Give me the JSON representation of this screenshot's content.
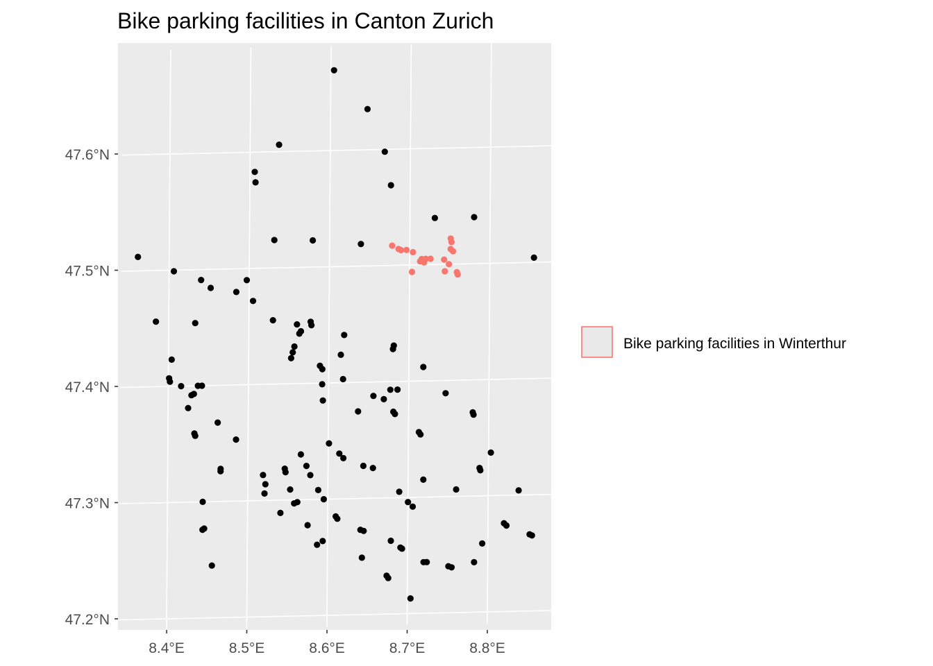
{
  "chart_data": {
    "type": "scatter",
    "title": "Bike parking facilities in Canton Zurich",
    "xlabel": "",
    "ylabel": "",
    "xlim": [
      8.34,
      8.88
    ],
    "ylim": [
      47.19,
      47.69
    ],
    "x_ticks": [
      {
        "value": 8.4,
        "label": "8.4°E"
      },
      {
        "value": 8.5,
        "label": "8.5°E"
      },
      {
        "value": 8.6,
        "label": "8.6°E"
      },
      {
        "value": 8.7,
        "label": "8.7°E"
      },
      {
        "value": 8.8,
        "label": "8.8°E"
      }
    ],
    "y_ticks": [
      {
        "value": 47.2,
        "label": "47.2°N"
      },
      {
        "value": 47.3,
        "label": "47.3°N"
      },
      {
        "value": 47.4,
        "label": "47.4°N"
      },
      {
        "value": 47.5,
        "label": "47.5°N"
      },
      {
        "value": 47.6,
        "label": "47.6°N"
      }
    ],
    "grid": true,
    "panel_background": "#ebebeb",
    "grid_color": "#ffffff",
    "legend": {
      "position": "right",
      "entries": [
        {
          "label": "Bike parking facilities in Winterthur",
          "fill": "#e8e8e8",
          "border": "#f8766d"
        }
      ]
    },
    "series": [
      {
        "color": "#000000",
        "points": [
          [
            8.604,
            47.669
          ],
          [
            8.646,
            47.635
          ],
          [
            8.536,
            47.606
          ],
          [
            8.668,
            47.598
          ],
          [
            8.506,
            47.583
          ],
          [
            8.507,
            47.574
          ],
          [
            8.676,
            47.569
          ],
          [
            8.731,
            47.54
          ],
          [
            8.78,
            47.54
          ],
          [
            8.531,
            47.524
          ],
          [
            8.579,
            47.523
          ],
          [
            8.639,
            47.519
          ],
          [
            8.361,
            47.512
          ],
          [
            8.855,
            47.504
          ],
          [
            8.406,
            47.499
          ],
          [
            8.44,
            47.491
          ],
          [
            8.497,
            47.49
          ],
          [
            8.452,
            47.484
          ],
          [
            8.484,
            47.48
          ],
          [
            8.505,
            47.472
          ],
          [
            8.384,
            47.456
          ],
          [
            8.433,
            47.454
          ],
          [
            8.53,
            47.455
          ],
          [
            8.577,
            47.453
          ],
          [
            8.56,
            47.451
          ],
          [
            8.578,
            47.45
          ],
          [
            8.565,
            47.445
          ],
          [
            8.563,
            47.443
          ],
          [
            8.619,
            47.441
          ],
          [
            8.557,
            47.432
          ],
          [
            8.681,
            47.431
          ],
          [
            8.68,
            47.428
          ],
          [
            8.555,
            47.427
          ],
          [
            8.615,
            47.424
          ],
          [
            8.553,
            47.422
          ],
          [
            8.404,
            47.423
          ],
          [
            8.589,
            47.415
          ],
          [
            8.592,
            47.412
          ],
          [
            8.718,
            47.412
          ],
          [
            8.401,
            47.407
          ],
          [
            8.402,
            47.404
          ],
          [
            8.618,
            47.403
          ],
          [
            8.442,
            47.4
          ],
          [
            8.437,
            47.4
          ],
          [
            8.416,
            47.4
          ],
          [
            8.592,
            47.399
          ],
          [
            8.677,
            47.393
          ],
          [
            8.686,
            47.393
          ],
          [
            8.432,
            47.393
          ],
          [
            8.429,
            47.392
          ],
          [
            8.656,
            47.388
          ],
          [
            8.746,
            47.389
          ],
          [
            8.593,
            47.385
          ],
          [
            8.669,
            47.385
          ],
          [
            8.425,
            47.381
          ],
          [
            8.637,
            47.375
          ],
          [
            8.681,
            47.374
          ],
          [
            8.683,
            47.372
          ],
          [
            8.78,
            47.372
          ],
          [
            8.781,
            47.37
          ],
          [
            8.462,
            47.368
          ],
          [
            8.433,
            47.359
          ],
          [
            8.434,
            47.357
          ],
          [
            8.713,
            47.356
          ],
          [
            8.715,
            47.354
          ],
          [
            8.485,
            47.353
          ],
          [
            8.601,
            47.348
          ],
          [
            8.566,
            47.339
          ],
          [
            8.614,
            47.339
          ],
          [
            8.803,
            47.337
          ],
          [
            8.619,
            47.335
          ],
          [
            8.573,
            47.329
          ],
          [
            8.466,
            47.328
          ],
          [
            8.466,
            47.326
          ],
          [
            8.644,
            47.328
          ],
          [
            8.656,
            47.326
          ],
          [
            8.546,
            47.327
          ],
          [
            8.547,
            47.324
          ],
          [
            8.519,
            47.322
          ],
          [
            8.578,
            47.321
          ],
          [
            8.789,
            47.324
          ],
          [
            8.79,
            47.322
          ],
          [
            8.522,
            47.314
          ],
          [
            8.719,
            47.315
          ],
          [
            8.553,
            47.309
          ],
          [
            8.588,
            47.308
          ],
          [
            8.521,
            47.306
          ],
          [
            8.689,
            47.305
          ],
          [
            8.76,
            47.306
          ],
          [
            8.838,
            47.304
          ],
          [
            8.444,
            47.3
          ],
          [
            8.562,
            47.298
          ],
          [
            8.558,
            47.297
          ],
          [
            8.595,
            47.3
          ],
          [
            8.7,
            47.296
          ],
          [
            8.706,
            47.292
          ],
          [
            8.541,
            47.289
          ],
          [
            8.61,
            47.285
          ],
          [
            8.612,
            47.283
          ],
          [
            8.575,
            47.278
          ],
          [
            8.446,
            47.277
          ],
          [
            8.444,
            47.276
          ],
          [
            8.82,
            47.276
          ],
          [
            8.823,
            47.274
          ],
          [
            8.641,
            47.273
          ],
          [
            8.645,
            47.272
          ],
          [
            8.852,
            47.266
          ],
          [
            8.855,
            47.265
          ],
          [
            8.594,
            47.264
          ],
          [
            8.587,
            47.261
          ],
          [
            8.679,
            47.263
          ],
          [
            8.691,
            47.257
          ],
          [
            8.693,
            47.256
          ],
          [
            8.793,
            47.259
          ],
          [
            8.643,
            47.249
          ],
          [
            8.456,
            47.245
          ],
          [
            8.72,
            47.244
          ],
          [
            8.724,
            47.244
          ],
          [
            8.783,
            47.243
          ],
          [
            8.751,
            47.24
          ],
          [
            8.755,
            47.239
          ],
          [
            8.674,
            47.233
          ],
          [
            8.676,
            47.231
          ],
          [
            8.704,
            47.213
          ]
        ]
      },
      {
        "color": "#f8766d",
        "points": [
          [
            8.678,
            47.517
          ],
          [
            8.686,
            47.514
          ],
          [
            8.689,
            47.513
          ],
          [
            8.696,
            47.513
          ],
          [
            8.704,
            47.511
          ],
          [
            8.715,
            47.505
          ],
          [
            8.72,
            47.505
          ],
          [
            8.726,
            47.505
          ],
          [
            8.713,
            47.503
          ],
          [
            8.718,
            47.502
          ],
          [
            8.743,
            47.504
          ],
          [
            8.751,
            47.522
          ],
          [
            8.752,
            47.519
          ],
          [
            8.751,
            47.513
          ],
          [
            8.754,
            47.511
          ],
          [
            8.749,
            47.5
          ],
          [
            8.703,
            47.494
          ],
          [
            8.744,
            47.494
          ],
          [
            8.759,
            47.493
          ],
          [
            8.76,
            47.491
          ]
        ]
      }
    ]
  }
}
